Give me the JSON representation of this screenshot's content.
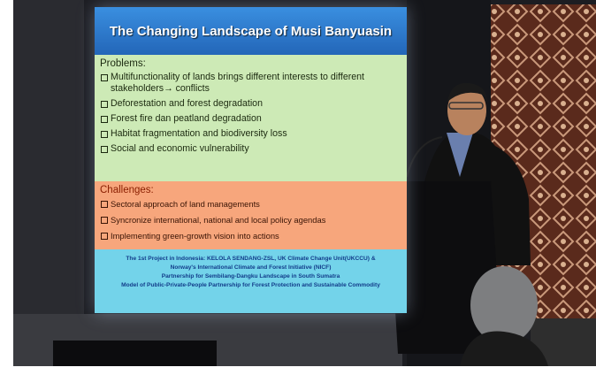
{
  "slide": {
    "title": "The Changing Landscape of Musi Banyuasin",
    "problems": {
      "heading": "Problems:",
      "items": [
        "Multifunctionality of lands brings different interests to different stakeholders→ conflicts",
        "Deforestation and forest degradation",
        "Forest fire dan peatland degradation",
        "Habitat fragmentation and biodiversity loss",
        "Social and economic vulnerability"
      ]
    },
    "challenges": {
      "heading": "Challenges:",
      "items": [
        "Sectoral approach of land managements",
        "Syncronize international, national and local policy agendas",
        "Implementing green-growth vision into actions"
      ]
    },
    "footer": [
      "The 1st Project in Indonesia: KELOLA SENDANG-ZSL, UK Climate Change Unit(UKCCU) &",
      "Norway's International Climate and Forest Initiative (NICF)",
      "Partnership for Sembilang-Dangku Landscape in South Sumatra",
      "Model of Public-Private-People Partnership for Forest Protection and Sustainable Commodity"
    ]
  }
}
